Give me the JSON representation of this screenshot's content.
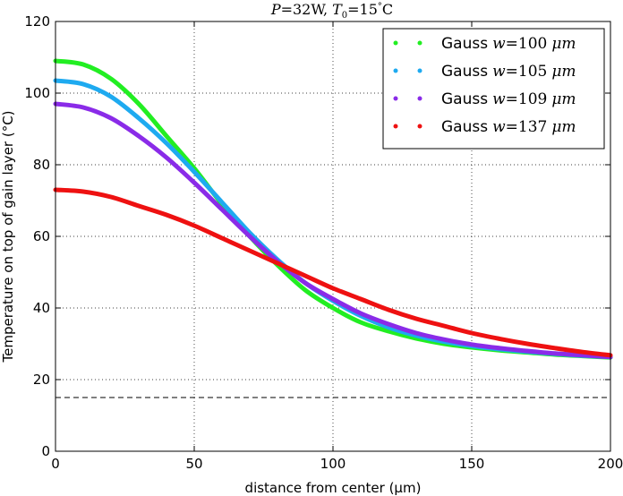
{
  "chart_data": {
    "type": "line",
    "title": "P=32W, T₀=15°C",
    "xlabel": "distance from center (μm)",
    "ylabel": "Temperature on top of gain layer (°C)",
    "xlim": [
      0,
      200
    ],
    "ylim": [
      0,
      120
    ],
    "xticks": [
      "0",
      "50",
      "100",
      "150",
      "200"
    ],
    "yticks": [
      "0",
      "20",
      "40",
      "60",
      "80",
      "100",
      "120"
    ],
    "grid": true,
    "legend_position": "top-right",
    "reference_line": {
      "y": 15,
      "style": "dashed",
      "color": "#000000"
    },
    "x": [
      0,
      10,
      20,
      30,
      40,
      50,
      60,
      70,
      80,
      90,
      100,
      110,
      120,
      130,
      140,
      150,
      160,
      170,
      180,
      190,
      200
    ],
    "series": [
      {
        "name": "Gauss w=100 μm",
        "color": "#22ee22",
        "values": [
          109,
          108,
          104,
          97,
          88,
          79,
          69,
          60,
          52,
          45,
          40,
          36,
          33.5,
          31.5,
          30,
          29,
          28.2,
          27.6,
          27,
          26.6,
          26.2
        ]
      },
      {
        "name": "Gauss w=105 μm",
        "color": "#1eaaf0",
        "values": [
          103.5,
          102.5,
          99,
          93,
          86,
          78,
          69.5,
          61,
          53.5,
          47,
          42,
          37.8,
          34.6,
          32.3,
          30.6,
          29.4,
          28.5,
          27.8,
          27.2,
          26.7,
          26.3
        ]
      },
      {
        "name": "Gauss w=109 μm",
        "color": "#8a2be8",
        "values": [
          97,
          96,
          93,
          88,
          82,
          75,
          67.5,
          60,
          53,
          47,
          42.5,
          38.5,
          35.5,
          33,
          31.2,
          29.8,
          28.8,
          28,
          27.3,
          26.8,
          26.3
        ]
      },
      {
        "name": "Gauss w=137 μm",
        "color": "#ee1111",
        "values": [
          73,
          72.5,
          71,
          68.5,
          66,
          63,
          59.5,
          56,
          52.5,
          49,
          45.5,
          42.5,
          39.5,
          37,
          35,
          33,
          31.4,
          30,
          28.8,
          27.7,
          26.8
        ]
      }
    ]
  },
  "legend": {
    "prefix": "Gauss",
    "var": "w",
    "equals": "=",
    "values": [
      "100",
      "105",
      "109",
      "137"
    ],
    "unit": "μm"
  },
  "title_parts": {
    "p_var": "P",
    "p_value": "=32W,",
    "t_var": "T",
    "t_sub": "0",
    "t_value": "=15",
    "deg": "°",
    "t_unit": "C"
  }
}
